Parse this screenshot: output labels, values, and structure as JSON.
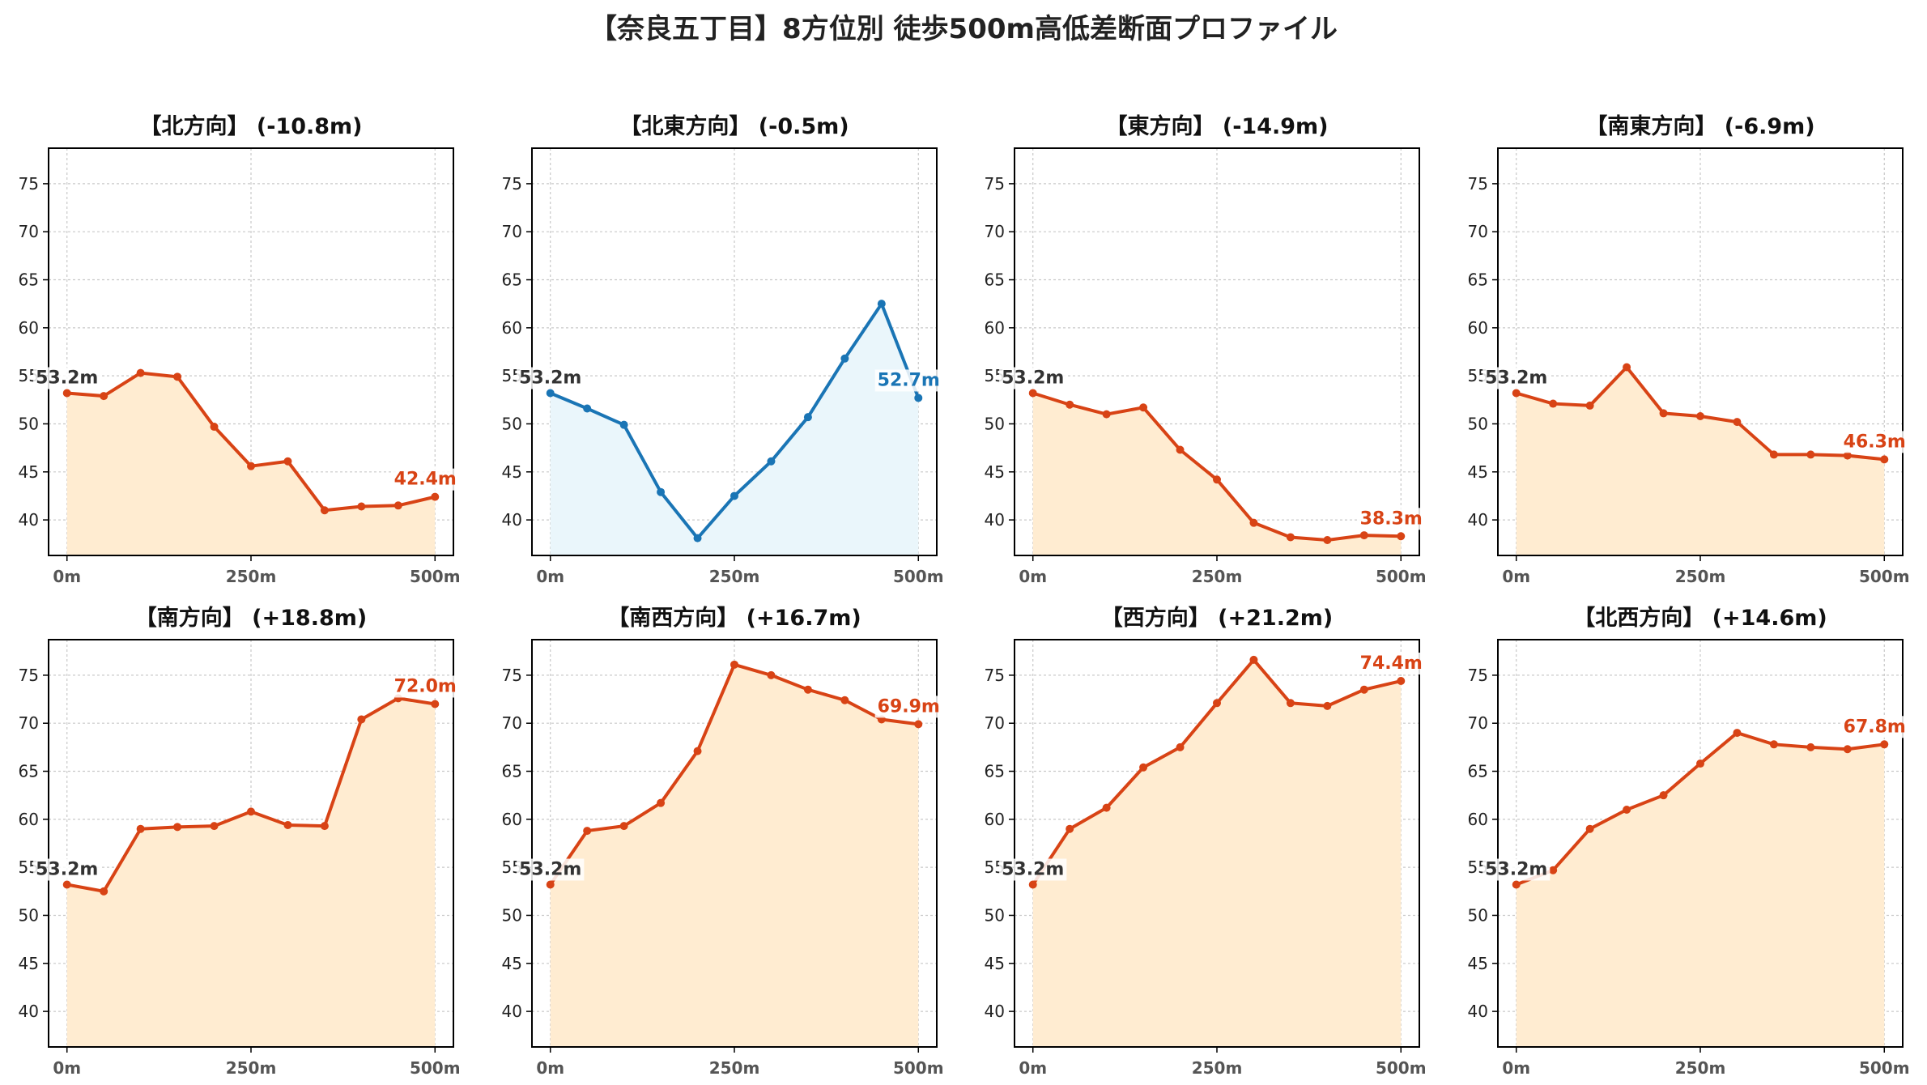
{
  "title": "【奈良五丁目】8方位別 徒歩500m高低差断面プロファイル",
  "colors": {
    "down": "#d84315",
    "down_fill": "#ffecd1",
    "up": "#1a75b5",
    "up_fill": "#eaf6fb",
    "start_label": "#333333"
  },
  "chart_data": [
    {
      "type": "area",
      "title": "【北方向】 (-10.8m)",
      "trend": "down",
      "x": [
        0,
        50,
        100,
        150,
        200,
        250,
        300,
        350,
        400,
        450,
        500
      ],
      "values": [
        53.2,
        52.9,
        55.3,
        54.9,
        49.7,
        45.6,
        46.1,
        41.0,
        41.4,
        41.5,
        42.4
      ],
      "start_label": "53.2m",
      "end_label": "42.4m",
      "xticks": [
        "0m",
        "250m",
        "500m"
      ],
      "yticks": [
        40,
        45,
        50,
        55,
        60,
        65,
        70,
        75
      ],
      "xlim": [
        -25,
        525
      ],
      "ylim": [
        36.3,
        78.7
      ],
      "grid": true
    },
    {
      "type": "area",
      "title": "【北東方向】 (-0.5m)",
      "trend": "up",
      "x": [
        0,
        50,
        100,
        150,
        200,
        250,
        300,
        350,
        400,
        450,
        500
      ],
      "values": [
        53.2,
        51.6,
        49.9,
        42.9,
        38.1,
        42.5,
        46.1,
        50.7,
        56.8,
        62.5,
        52.7
      ],
      "start_label": "53.2m",
      "end_label": "52.7m",
      "xticks": [
        "0m",
        "250m",
        "500m"
      ],
      "yticks": [
        40,
        45,
        50,
        55,
        60,
        65,
        70,
        75
      ],
      "xlim": [
        -25,
        525
      ],
      "ylim": [
        36.3,
        78.7
      ],
      "grid": true
    },
    {
      "type": "area",
      "title": "【東方向】 (-14.9m)",
      "trend": "down",
      "x": [
        0,
        50,
        100,
        150,
        200,
        250,
        300,
        350,
        400,
        450,
        500
      ],
      "values": [
        53.2,
        52.0,
        51.0,
        51.7,
        47.3,
        44.2,
        39.7,
        38.2,
        37.9,
        38.4,
        38.3
      ],
      "start_label": "53.2m",
      "end_label": "38.3m",
      "xticks": [
        "0m",
        "250m",
        "500m"
      ],
      "yticks": [
        40,
        45,
        50,
        55,
        60,
        65,
        70,
        75
      ],
      "xlim": [
        -25,
        525
      ],
      "ylim": [
        36.3,
        78.7
      ],
      "grid": true
    },
    {
      "type": "area",
      "title": "【南東方向】 (-6.9m)",
      "trend": "down",
      "x": [
        0,
        50,
        100,
        150,
        200,
        250,
        300,
        350,
        400,
        450,
        500
      ],
      "values": [
        53.2,
        52.1,
        51.9,
        55.9,
        51.1,
        50.8,
        50.2,
        46.8,
        46.8,
        46.7,
        46.3
      ],
      "start_label": "53.2m",
      "end_label": "46.3m",
      "xticks": [
        "0m",
        "250m",
        "500m"
      ],
      "yticks": [
        40,
        45,
        50,
        55,
        60,
        65,
        70,
        75
      ],
      "xlim": [
        -25,
        525
      ],
      "ylim": [
        36.3,
        78.7
      ],
      "grid": true
    },
    {
      "type": "area",
      "title": "【南方向】 (+18.8m)",
      "trend": "down",
      "x": [
        0,
        50,
        100,
        150,
        200,
        250,
        300,
        350,
        400,
        450,
        500
      ],
      "values": [
        53.2,
        52.5,
        59.0,
        59.2,
        59.3,
        60.8,
        59.4,
        59.3,
        70.4,
        72.6,
        72.0
      ],
      "start_label": "53.2m",
      "end_label": "72.0m",
      "xticks": [
        "0m",
        "250m",
        "500m"
      ],
      "yticks": [
        40,
        45,
        50,
        55,
        60,
        65,
        70,
        75
      ],
      "xlim": [
        -25,
        525
      ],
      "ylim": [
        36.3,
        78.7
      ],
      "grid": true
    },
    {
      "type": "area",
      "title": "【南西方向】 (+16.7m)",
      "trend": "down",
      "x": [
        0,
        50,
        100,
        150,
        200,
        250,
        300,
        350,
        400,
        450,
        500
      ],
      "values": [
        53.2,
        58.8,
        59.3,
        61.7,
        67.1,
        76.1,
        75.0,
        73.5,
        72.4,
        70.4,
        69.9
      ],
      "start_label": "53.2m",
      "end_label": "69.9m",
      "xticks": [
        "0m",
        "250m",
        "500m"
      ],
      "yticks": [
        40,
        45,
        50,
        55,
        60,
        65,
        70,
        75
      ],
      "xlim": [
        -25,
        525
      ],
      "ylim": [
        36.3,
        78.7
      ],
      "grid": true
    },
    {
      "type": "area",
      "title": "【西方向】 (+21.2m)",
      "trend": "down",
      "x": [
        0,
        50,
        100,
        150,
        200,
        250,
        300,
        350,
        400,
        450,
        500
      ],
      "values": [
        53.2,
        59.0,
        61.2,
        65.4,
        67.5,
        72.1,
        76.6,
        72.1,
        71.8,
        73.5,
        74.4
      ],
      "start_label": "53.2m",
      "end_label": "74.4m",
      "xticks": [
        "0m",
        "250m",
        "500m"
      ],
      "yticks": [
        40,
        45,
        50,
        55,
        60,
        65,
        70,
        75
      ],
      "xlim": [
        -25,
        525
      ],
      "ylim": [
        36.3,
        78.7
      ],
      "grid": true
    },
    {
      "type": "area",
      "title": "【北西方向】 (+14.6m)",
      "trend": "down",
      "x": [
        0,
        50,
        100,
        150,
        200,
        250,
        300,
        350,
        400,
        450,
        500
      ],
      "values": [
        53.2,
        54.7,
        59.0,
        61.0,
        62.5,
        65.8,
        69.0,
        67.8,
        67.5,
        67.3,
        67.8
      ],
      "start_label": "53.2m",
      "end_label": "67.8m",
      "xticks": [
        "0m",
        "250m",
        "500m"
      ],
      "yticks": [
        40,
        45,
        50,
        55,
        60,
        65,
        70,
        75
      ],
      "xlim": [
        -25,
        525
      ],
      "ylim": [
        36.3,
        78.7
      ],
      "grid": true
    }
  ]
}
